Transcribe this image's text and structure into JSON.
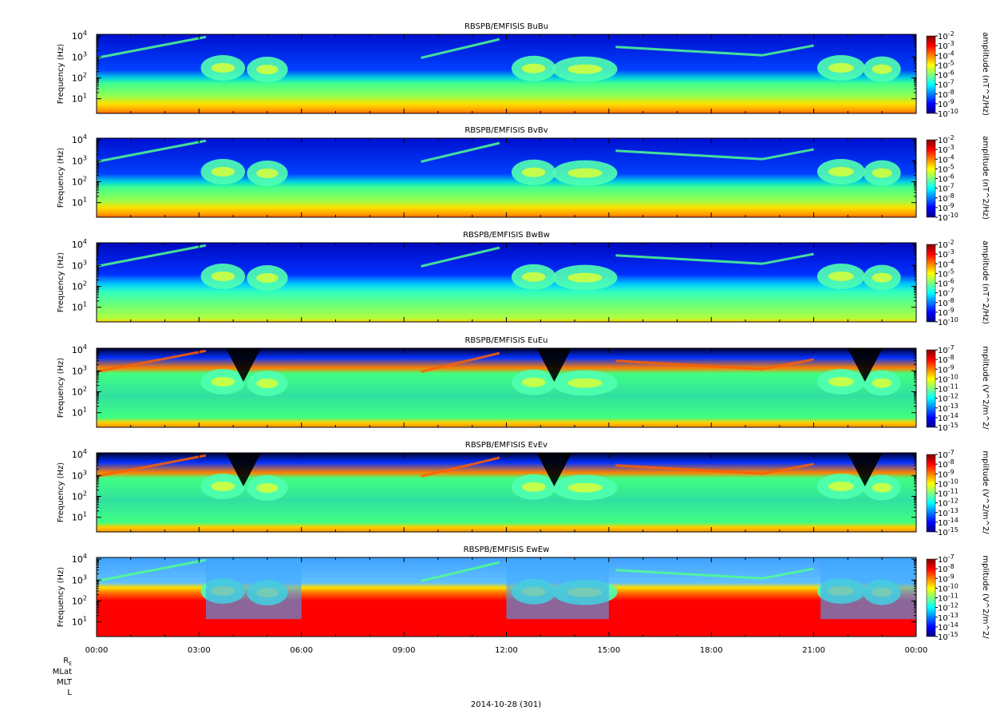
{
  "chart_data": [
    {
      "type": "heatmap",
      "title": "RBSPB/EMFISIS  BuBu",
      "ylabel": "Frequency (Hz)",
      "yscale": "log",
      "ylim": [
        2,
        12000
      ],
      "yticks": [
        "10",
        "10",
        "10",
        "10"
      ],
      "yticks_exp": [
        "1",
        "2",
        "3",
        "4"
      ],
      "colorbar": {
        "label": "amplitude (nT^2/Hz)",
        "scale": "log",
        "range": [
          1e-10,
          0.01
        ],
        "ticks": [
          "10",
          "10",
          "10",
          "10",
          "10",
          "10",
          "10",
          "10",
          "10"
        ],
        "ticks_exp": [
          "-2",
          "-3",
          "-4",
          "-5",
          "-6",
          "-7",
          "-8",
          "-9",
          "-10"
        ]
      },
      "style": "b"
    },
    {
      "type": "heatmap",
      "title": "RBSPB/EMFISIS  BvBv",
      "ylabel": "Frequency (Hz)",
      "yscale": "log",
      "ylim": [
        2,
        12000
      ],
      "yticks": [
        "10",
        "10",
        "10",
        "10"
      ],
      "yticks_exp": [
        "1",
        "2",
        "3",
        "4"
      ],
      "colorbar": {
        "label": "amplitude (nT^2/Hz)",
        "scale": "log",
        "range": [
          1e-10,
          0.01
        ],
        "ticks": [
          "10",
          "10",
          "10",
          "10",
          "10",
          "10",
          "10",
          "10",
          "10"
        ],
        "ticks_exp": [
          "-2",
          "-3",
          "-4",
          "-5",
          "-6",
          "-7",
          "-8",
          "-9",
          "-10"
        ]
      },
      "style": "b"
    },
    {
      "type": "heatmap",
      "title": "RBSPB/EMFISIS  BwBw",
      "ylabel": "Frequency (Hz)",
      "yscale": "log",
      "ylim": [
        2,
        12000
      ],
      "yticks": [
        "10",
        "10",
        "10",
        "10"
      ],
      "yticks_exp": [
        "1",
        "2",
        "3",
        "4"
      ],
      "colorbar": {
        "label": "amplitude (nT^2/Hz)",
        "scale": "log",
        "range": [
          1e-10,
          0.01
        ],
        "ticks": [
          "10",
          "10",
          "10",
          "10",
          "10",
          "10",
          "10",
          "10",
          "10"
        ],
        "ticks_exp": [
          "-2",
          "-3",
          "-4",
          "-5",
          "-6",
          "-7",
          "-8",
          "-9",
          "-10"
        ]
      },
      "style": "bw"
    },
    {
      "type": "heatmap",
      "title": "RBSPB/EMFISIS  EuEu",
      "ylabel": "Frequency (Hz)",
      "yscale": "log",
      "ylim": [
        2,
        12000
      ],
      "yticks": [
        "10",
        "10",
        "10",
        "10"
      ],
      "yticks_exp": [
        "1",
        "2",
        "3",
        "4"
      ],
      "colorbar": {
        "label": "mplitude (V^2/m^2/",
        "scale": "log",
        "range": [
          1e-15,
          1e-07
        ],
        "ticks": [
          "10",
          "10",
          "10",
          "10",
          "10",
          "10",
          "10",
          "10",
          "10"
        ],
        "ticks_exp": [
          "-7",
          "-8",
          "-9",
          "-10",
          "-11",
          "-12",
          "-13",
          "-14",
          "-15"
        ]
      },
      "style": "e"
    },
    {
      "type": "heatmap",
      "title": "RBSPB/EMFISIS  EvEv",
      "ylabel": "Frequency (Hz)",
      "yscale": "log",
      "ylim": [
        2,
        12000
      ],
      "yticks": [
        "10",
        "10",
        "10",
        "10"
      ],
      "yticks_exp": [
        "1",
        "2",
        "3",
        "4"
      ],
      "colorbar": {
        "label": "mplitude (V^2/m^2/",
        "scale": "log",
        "range": [
          1e-15,
          1e-07
        ],
        "ticks": [
          "10",
          "10",
          "10",
          "10",
          "10",
          "10",
          "10",
          "10",
          "10"
        ],
        "ticks_exp": [
          "-7",
          "-8",
          "-9",
          "-10",
          "-11",
          "-12",
          "-13",
          "-14",
          "-15"
        ]
      },
      "style": "e"
    },
    {
      "type": "heatmap",
      "title": "RBSPB/EMFISIS  EwEw",
      "ylabel": "Frequency (Hz)",
      "yscale": "log",
      "ylim": [
        2,
        12000
      ],
      "yticks": [
        "10",
        "10",
        "10",
        "10"
      ],
      "yticks_exp": [
        "1",
        "2",
        "3",
        "4"
      ],
      "colorbar": {
        "label": "mplitude (V^2/m^2/",
        "scale": "log",
        "range": [
          1e-15,
          1e-07
        ],
        "ticks": [
          "10",
          "10",
          "10",
          "10",
          "10",
          "10",
          "10",
          "10",
          "10"
        ],
        "ticks_exp": [
          "-7",
          "-8",
          "-9",
          "-10",
          "-11",
          "-12",
          "-13",
          "-14",
          "-15"
        ]
      },
      "style": "ew"
    }
  ],
  "x_axis": {
    "ticks": [
      "00:00",
      "03:00",
      "06:00",
      "09:00",
      "12:00",
      "15:00",
      "18:00",
      "21:00",
      "00:00"
    ],
    "date_label": "2014-10-28 (301)",
    "ephemeris_labels": [
      "R",
      "MLat",
      "MLT",
      "L"
    ],
    "re_subscript": "E"
  },
  "colors": {
    "jet": [
      "#00007f",
      "#0000ff",
      "#007fff",
      "#00ffff",
      "#7fff7f",
      "#ffff00",
      "#ff7f00",
      "#ff0000",
      "#7f0000"
    ]
  }
}
